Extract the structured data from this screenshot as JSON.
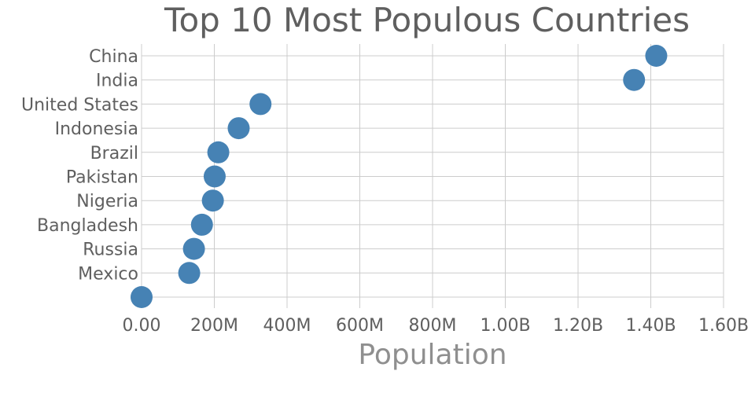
{
  "chart_data": {
    "type": "scatter",
    "title": "Top 10 Most Populous Countries",
    "xlabel": "Population",
    "ylabel": "",
    "xlim": [
      0,
      1600000000
    ],
    "x_ticks": [
      0,
      200000000,
      400000000,
      600000000,
      800000000,
      1000000000,
      1200000000,
      1400000000,
      1600000000
    ],
    "x_tick_labels": [
      "0.00",
      "200M",
      "400M",
      "600M",
      "800M",
      "1.00B",
      "1.20B",
      "1.40B",
      "1.60B"
    ],
    "categories": [
      "China",
      "India",
      "United States",
      "Indonesia",
      "Brazil",
      "Pakistan",
      "Nigeria",
      "Bangladesh",
      "Russia",
      "Mexico",
      ""
    ],
    "values": [
      1415000000,
      1354000000,
      327000000,
      267000000,
      211000000,
      201000000,
      196000000,
      166000000,
      144000000,
      131000000,
      0
    ],
    "grid": true,
    "colors": {
      "marker": "#4682b4",
      "grid": "#cccccc",
      "text": "#5f5f5f",
      "axis_title": "#8f8f8f"
    }
  }
}
